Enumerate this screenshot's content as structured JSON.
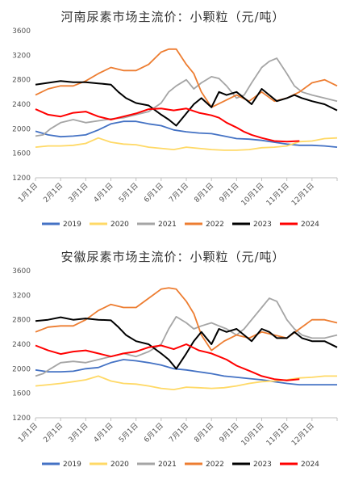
{
  "chart_data": [
    {
      "type": "line",
      "title": "河南尿素市场主流价：小颗粒（元/吨）",
      "xlabel": "",
      "ylabel": "",
      "ylim": [
        1200,
        3600
      ],
      "yticks": [
        "1200",
        "1600",
        "2000",
        "2400",
        "2800",
        "3200",
        "3600"
      ],
      "x_ticks": [
        "1月1日",
        "2月1日",
        "3月1日",
        "4月1日",
        "5月1日",
        "6月1日",
        "7月1日",
        "8月1日",
        "9月1日",
        "10月1日",
        "11月1日",
        "12月1日"
      ],
      "x_domain": [
        1,
        13
      ],
      "legend_position": "bottom",
      "series": [
        {
          "name": "2019",
          "color": "#4472C4",
          "x": [
            1,
            1.5,
            2,
            2.5,
            3,
            3.5,
            4,
            4.5,
            5,
            5.5,
            6,
            6.5,
            7,
            7.5,
            8,
            8.5,
            9,
            9.5,
            10,
            10.5,
            11,
            11.5,
            12,
            12.5,
            13
          ],
          "y": [
            1960,
            1900,
            1870,
            1880,
            1900,
            1980,
            2080,
            2120,
            2120,
            2080,
            2050,
            1980,
            1950,
            1930,
            1920,
            1880,
            1840,
            1830,
            1810,
            1780,
            1750,
            1730,
            1730,
            1720,
            1700
          ]
        },
        {
          "name": "2020",
          "color": "#FFD966",
          "x": [
            1,
            1.5,
            2,
            2.5,
            3,
            3.5,
            4,
            4.5,
            5,
            5.5,
            6,
            6.5,
            7,
            7.5,
            8,
            8.5,
            9,
            9.5,
            10,
            10.5,
            11,
            11.5,
            12,
            12.5,
            13
          ],
          "y": [
            1700,
            1720,
            1720,
            1730,
            1760,
            1850,
            1780,
            1750,
            1740,
            1700,
            1680,
            1660,
            1700,
            1680,
            1660,
            1650,
            1650,
            1660,
            1690,
            1700,
            1720,
            1790,
            1800,
            1840,
            1850
          ]
        },
        {
          "name": "2021",
          "color": "#A5A5A5",
          "x": [
            1,
            1.3,
            1.6,
            2,
            2.5,
            3,
            3.5,
            4,
            4.5,
            5,
            5.5,
            6,
            6.3,
            6.6,
            7,
            7.3,
            7.6,
            8,
            8.3,
            8.6,
            9,
            9.3,
            9.6,
            10,
            10.3,
            10.6,
            11,
            11.3,
            11.6,
            12,
            12.5,
            13
          ],
          "y": [
            1880,
            1900,
            2000,
            2100,
            2150,
            2100,
            2130,
            2160,
            2180,
            2230,
            2280,
            2420,
            2600,
            2700,
            2800,
            2650,
            2750,
            2850,
            2820,
            2700,
            2500,
            2550,
            2750,
            3000,
            3100,
            3150,
            2900,
            2700,
            2600,
            2550,
            2500,
            2450
          ]
        },
        {
          "name": "2022",
          "color": "#ED7D31",
          "x": [
            1,
            1.5,
            2,
            2.5,
            3,
            3.5,
            4,
            4.5,
            5,
            5.5,
            6,
            6.3,
            6.6,
            7,
            7.3,
            7.6,
            8,
            8.5,
            9,
            9.5,
            10,
            10.5,
            11,
            11.5,
            12,
            12.5,
            13
          ],
          "y": [
            2550,
            2650,
            2700,
            2700,
            2780,
            2900,
            3000,
            2950,
            2950,
            3050,
            3250,
            3300,
            3300,
            3050,
            2900,
            2600,
            2350,
            2450,
            2550,
            2450,
            2600,
            2450,
            2500,
            2600,
            2750,
            2800,
            2700
          ]
        },
        {
          "name": "2023",
          "color": "#000000",
          "x": [
            1,
            1.5,
            2,
            2.5,
            3,
            3.5,
            4,
            4.3,
            4.6,
            5,
            5.5,
            6,
            6.3,
            6.6,
            7,
            7.3,
            7.6,
            8,
            8.3,
            8.6,
            9,
            9.3,
            9.6,
            10,
            10.3,
            10.6,
            11,
            11.3,
            11.6,
            12,
            12.5,
            13
          ],
          "y": [
            2720,
            2750,
            2780,
            2760,
            2760,
            2740,
            2720,
            2600,
            2500,
            2420,
            2380,
            2230,
            2150,
            2050,
            2250,
            2400,
            2500,
            2350,
            2600,
            2550,
            2600,
            2500,
            2400,
            2650,
            2550,
            2450,
            2500,
            2550,
            2500,
            2450,
            2400,
            2300
          ]
        },
        {
          "name": "2024",
          "color": "#FF0000",
          "x": [
            1,
            1.5,
            2,
            2.5,
            3,
            3.5,
            4,
            4.5,
            5,
            5.5,
            6,
            6.5,
            7,
            7.5,
            8,
            8.3,
            8.6,
            9,
            9.3,
            9.6,
            10,
            10.5,
            11,
            11.5
          ],
          "y": [
            2320,
            2230,
            2200,
            2260,
            2280,
            2200,
            2150,
            2200,
            2250,
            2320,
            2330,
            2300,
            2330,
            2260,
            2220,
            2180,
            2100,
            2020,
            1950,
            1900,
            1850,
            1800,
            1790,
            1800
          ]
        }
      ]
    },
    {
      "type": "line",
      "title": "安徽尿素市场主流价：小颗粒（元/吨）",
      "xlabel": "",
      "ylabel": "",
      "ylim": [
        1200,
        3600
      ],
      "yticks": [
        "1200",
        "1600",
        "2000",
        "2400",
        "2800",
        "3200",
        "3600"
      ],
      "x_ticks": [
        "1月1日",
        "2月1日",
        "3月1日",
        "4月1日",
        "5月1日",
        "6月1日",
        "7月1日",
        "8月1日",
        "9月1日",
        "10月1日",
        "11月1日",
        "12月1日"
      ],
      "x_domain": [
        1,
        13
      ],
      "legend_position": "bottom",
      "series": [
        {
          "name": "2019",
          "color": "#4472C4",
          "x": [
            1,
            1.5,
            2,
            2.5,
            3,
            3.5,
            4,
            4.5,
            5,
            5.5,
            6,
            6.5,
            7,
            7.5,
            8,
            8.5,
            9,
            9.5,
            10,
            10.5,
            11,
            11.5,
            12,
            12.5,
            13
          ],
          "y": [
            1980,
            1950,
            1950,
            1960,
            2000,
            2020,
            2100,
            2150,
            2130,
            2100,
            2060,
            2000,
            1980,
            1950,
            1920,
            1880,
            1860,
            1840,
            1820,
            1790,
            1760,
            1740,
            1740,
            1740,
            1740
          ]
        },
        {
          "name": "2020",
          "color": "#FFD966",
          "x": [
            1,
            1.5,
            2,
            2.5,
            3,
            3.5,
            4,
            4.5,
            5,
            5.5,
            6,
            6.5,
            7,
            7.5,
            8,
            8.5,
            9,
            9.5,
            10,
            10.5,
            11,
            11.5,
            12,
            12.5,
            13
          ],
          "y": [
            1720,
            1740,
            1760,
            1790,
            1820,
            1880,
            1800,
            1760,
            1750,
            1720,
            1680,
            1660,
            1700,
            1690,
            1680,
            1690,
            1720,
            1760,
            1790,
            1800,
            1820,
            1850,
            1860,
            1880,
            1880
          ]
        },
        {
          "name": "2021",
          "color": "#A5A5A5",
          "x": [
            1,
            1.3,
            1.6,
            2,
            2.5,
            3,
            3.5,
            4,
            4.5,
            5,
            5.5,
            6,
            6.3,
            6.6,
            7,
            7.3,
            7.6,
            8,
            8.3,
            8.6,
            9,
            9.3,
            9.6,
            10,
            10.3,
            10.6,
            11,
            11.3,
            11.6,
            12,
            12.5,
            13
          ],
          "y": [
            1880,
            1920,
            2000,
            2100,
            2120,
            2100,
            2150,
            2200,
            2250,
            2200,
            2280,
            2400,
            2650,
            2850,
            2750,
            2650,
            2700,
            2750,
            2700,
            2650,
            2550,
            2650,
            2800,
            3000,
            3150,
            3100,
            2800,
            2650,
            2550,
            2500,
            2500,
            2550
          ]
        },
        {
          "name": "2022",
          "color": "#ED7D31",
          "x": [
            1,
            1.5,
            2,
            2.5,
            3,
            3.5,
            4,
            4.5,
            5,
            5.5,
            6,
            6.3,
            6.6,
            7,
            7.3,
            7.6,
            8,
            8.5,
            9,
            9.5,
            10,
            10.5,
            11,
            11.5,
            12,
            12.5,
            13
          ],
          "y": [
            2600,
            2680,
            2700,
            2700,
            2800,
            2950,
            3050,
            3000,
            3000,
            3150,
            3300,
            3320,
            3300,
            3100,
            2900,
            2550,
            2300,
            2450,
            2550,
            2500,
            2600,
            2550,
            2500,
            2650,
            2800,
            2800,
            2750
          ]
        },
        {
          "name": "2023",
          "color": "#000000",
          "x": [
            1,
            1.5,
            2,
            2.5,
            3,
            3.5,
            4,
            4.3,
            4.6,
            5,
            5.5,
            6,
            6.3,
            6.6,
            7,
            7.3,
            7.6,
            8,
            8.3,
            8.6,
            9,
            9.3,
            9.6,
            10,
            10.3,
            10.6,
            11,
            11.3,
            11.6,
            12,
            12.5,
            13
          ],
          "y": [
            2780,
            2800,
            2840,
            2800,
            2820,
            2800,
            2790,
            2680,
            2550,
            2450,
            2400,
            2250,
            2150,
            2000,
            2250,
            2450,
            2600,
            2400,
            2650,
            2600,
            2650,
            2550,
            2450,
            2650,
            2600,
            2500,
            2500,
            2600,
            2500,
            2450,
            2450,
            2350
          ]
        },
        {
          "name": "2024",
          "color": "#FF0000",
          "x": [
            1,
            1.5,
            2,
            2.5,
            3,
            3.5,
            4,
            4.5,
            5,
            5.5,
            6,
            6.5,
            7,
            7.5,
            8,
            8.3,
            8.6,
            9,
            9.3,
            9.6,
            10,
            10.5,
            11,
            11.5
          ],
          "y": [
            2380,
            2300,
            2240,
            2280,
            2300,
            2250,
            2200,
            2250,
            2280,
            2350,
            2380,
            2320,
            2400,
            2300,
            2250,
            2200,
            2150,
            2050,
            2000,
            1950,
            1880,
            1830,
            1810,
            1830
          ]
        }
      ]
    }
  ]
}
